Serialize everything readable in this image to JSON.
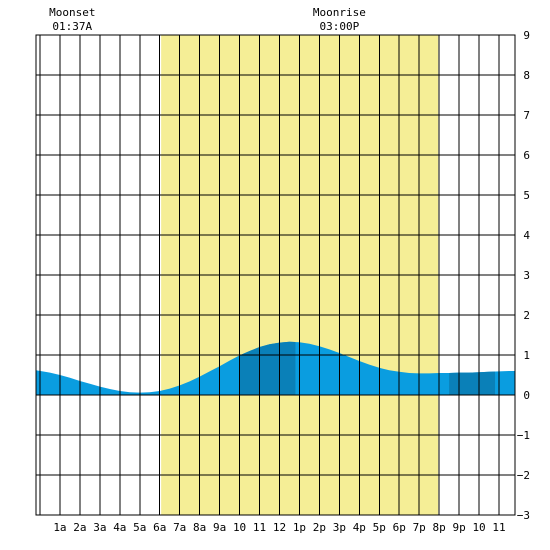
{
  "header": {
    "moonset": {
      "label": "Moonset",
      "time": "01:37A",
      "hour": 1.617
    },
    "moonrise": {
      "label": "Moonrise",
      "time": "03:00P",
      "hour": 15.0
    }
  },
  "chart_data": {
    "type": "area",
    "title": "",
    "xlabel": "",
    "ylabel": "",
    "xlim": [
      -0.2,
      23.8
    ],
    "ylim": [
      -3,
      9
    ],
    "y_ticks": [
      -3,
      -2,
      -1,
      0,
      1,
      2,
      3,
      4,
      5,
      6,
      7,
      8,
      9
    ],
    "x_tick_labels": [
      "1a",
      "2a",
      "3a",
      "4a",
      "5a",
      "6a",
      "7a",
      "8a",
      "9a",
      "10",
      "11",
      "12",
      "1p",
      "2p",
      "3p",
      "4p",
      "5p",
      "6p",
      "7p",
      "8p",
      "9p",
      "10",
      "11"
    ],
    "x_tick_hours": [
      1,
      2,
      3,
      4,
      5,
      6,
      7,
      8,
      9,
      10,
      11,
      12,
      13,
      14,
      15,
      16,
      17,
      18,
      19,
      20,
      21,
      22,
      23
    ],
    "grid": true,
    "daylight": {
      "start": 6.07,
      "end": 19.95,
      "color": "#f5ee96"
    },
    "colors": {
      "tide": "#0a9de0",
      "tide_dark": "#0a80b8"
    },
    "dark_bands": [
      [
        10.0,
        12.8
      ],
      [
        20.5,
        22.8
      ]
    ],
    "tide_curve": {
      "x": [
        -0.2,
        0.5,
        1,
        1.5,
        2,
        2.5,
        3,
        3.5,
        4,
        4.5,
        5,
        5.5,
        6,
        6.5,
        7,
        7.5,
        8,
        8.5,
        9,
        9.5,
        10,
        10.5,
        11,
        11.5,
        12,
        12.5,
        13,
        13.5,
        14,
        14.5,
        15,
        15.5,
        16,
        16.5,
        17,
        17.5,
        18,
        18.5,
        19,
        19.5,
        20,
        20.5,
        21,
        21.5,
        22,
        22.5,
        23,
        23.5,
        23.8
      ],
      "y": [
        0.62,
        0.56,
        0.5,
        0.43,
        0.35,
        0.28,
        0.21,
        0.15,
        0.1,
        0.07,
        0.06,
        0.07,
        0.1,
        0.16,
        0.24,
        0.34,
        0.46,
        0.59,
        0.72,
        0.86,
        0.99,
        1.1,
        1.2,
        1.27,
        1.31,
        1.33,
        1.32,
        1.28,
        1.22,
        1.14,
        1.05,
        0.95,
        0.85,
        0.76,
        0.68,
        0.62,
        0.58,
        0.55,
        0.54,
        0.54,
        0.55,
        0.55,
        0.56,
        0.56,
        0.57,
        0.58,
        0.59,
        0.6,
        0.6
      ]
    }
  }
}
